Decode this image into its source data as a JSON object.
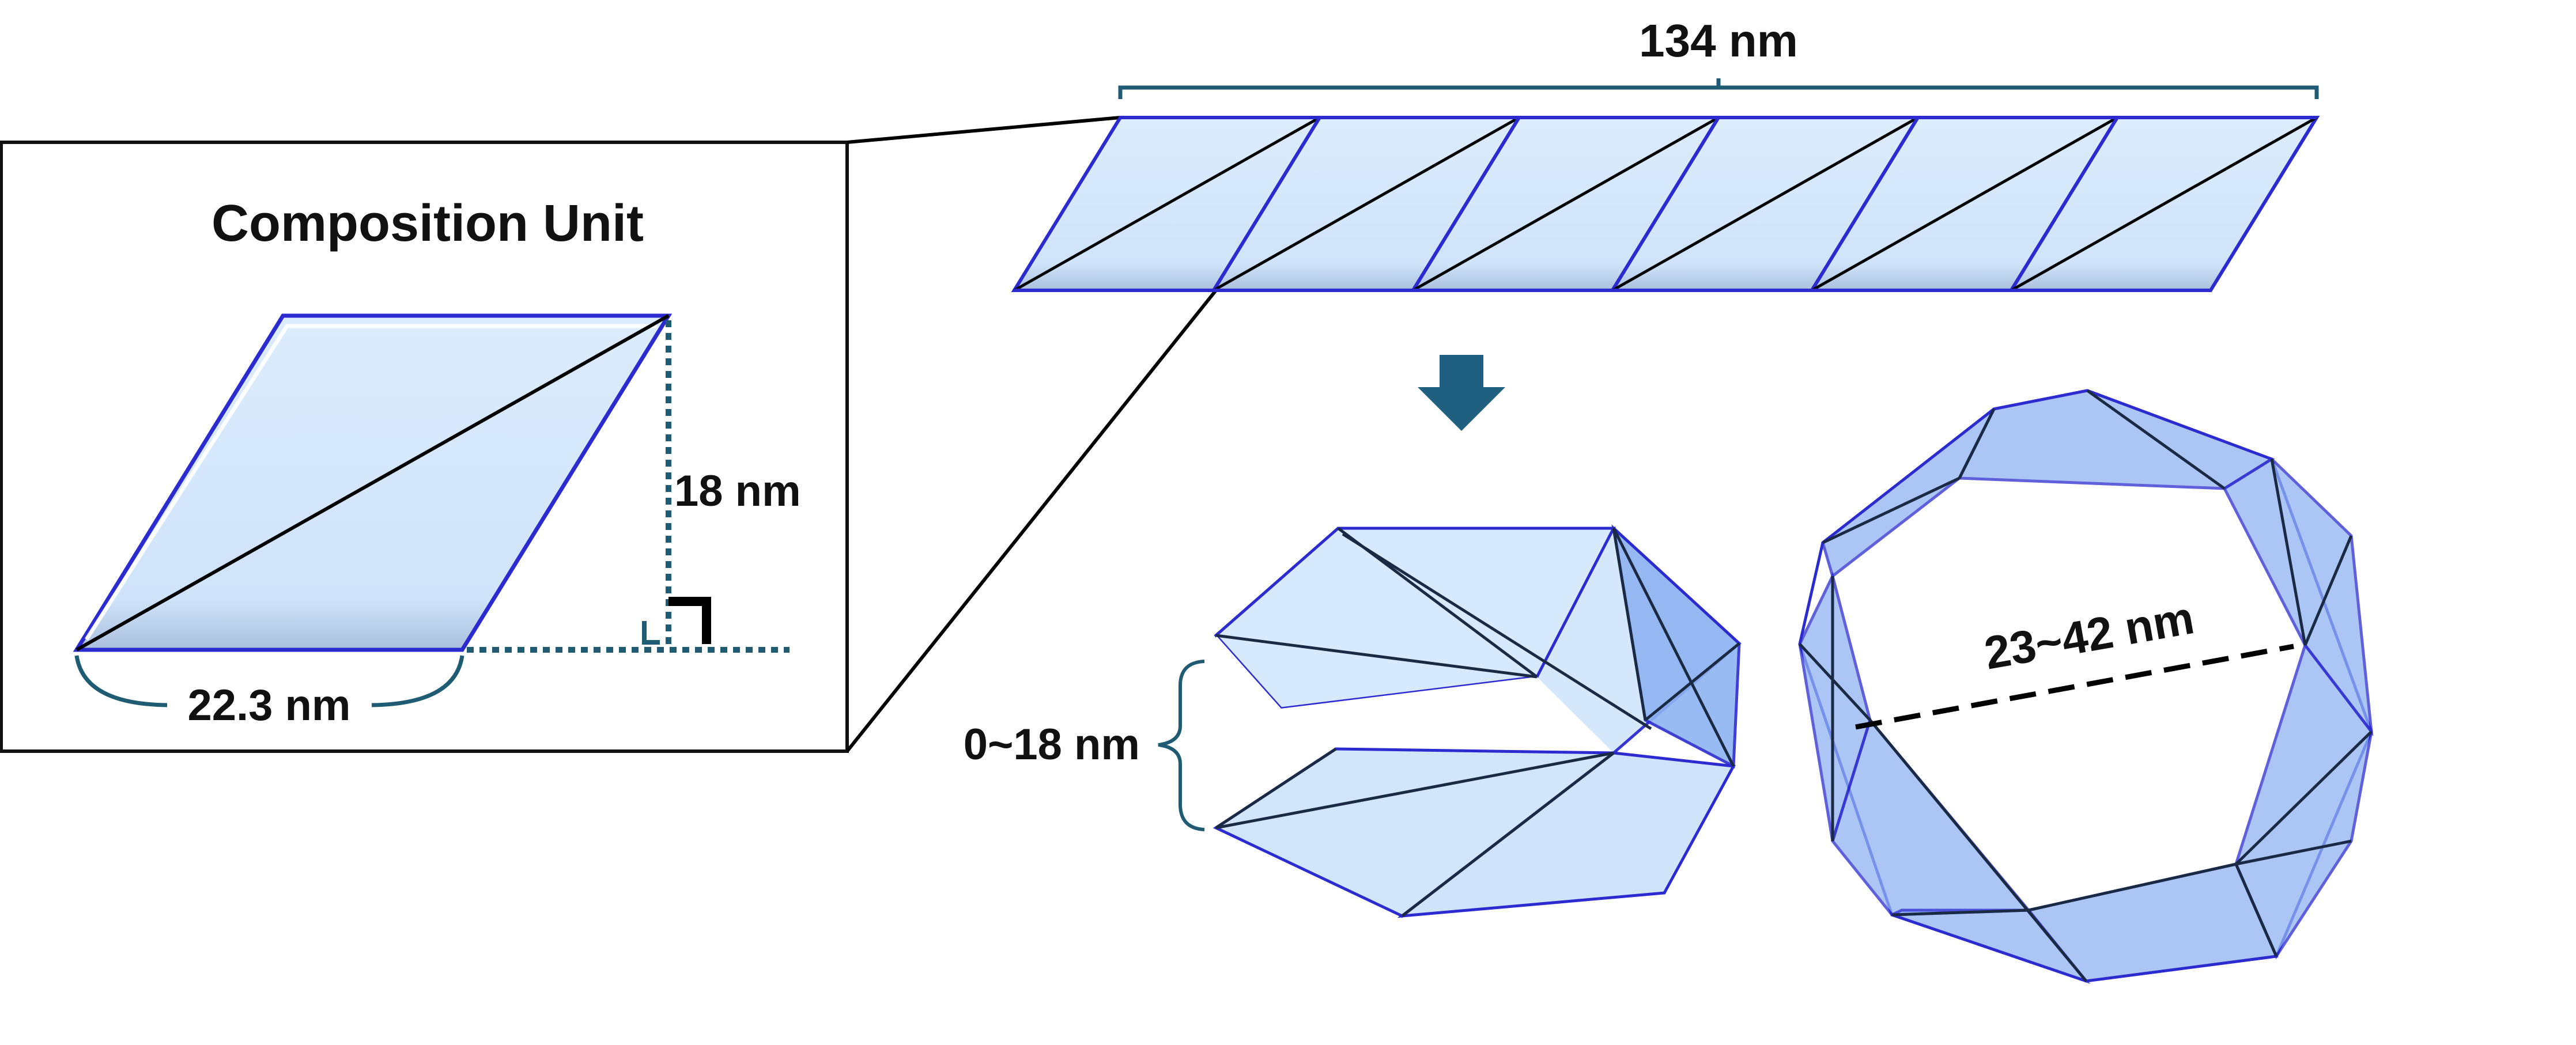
{
  "inset": {
    "title": "Composition Unit",
    "width_label": "22.3 nm",
    "height_label": "18 nm"
  },
  "strip": {
    "length_label": "134 nm",
    "unit_count": 6
  },
  "tube_side": {
    "gap_label": "0~18 nm"
  },
  "tube_end": {
    "diameter_label": "23~42 nm"
  },
  "colors": {
    "panel_fill": "#d2e6fb",
    "panel_edge": "#2b2bd0",
    "panel_dark": "#8fb4f2",
    "line": "#000000",
    "dimension": "#1f5c74",
    "arrow": "#1f5f80"
  }
}
